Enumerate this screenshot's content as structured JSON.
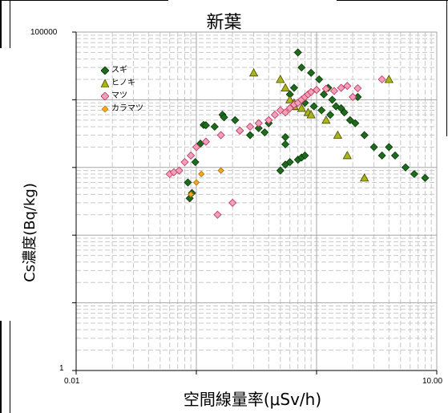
{
  "chart_data": {
    "type": "scatter",
    "title": "新葉",
    "xlabel": "空間線量率(μSv/h)",
    "ylabel": "Cs濃度(Bq/kg)",
    "xscale": "log",
    "yscale": "log",
    "xlim": [
      0.01,
      10
    ],
    "ylim": [
      1,
      100000
    ],
    "x_ticks": [
      "0.01",
      "10.00"
    ],
    "y_ticks": [
      "1",
      "100000"
    ],
    "grid": true,
    "legend_position": "top-left",
    "series": [
      {
        "name": "スギ",
        "marker": "diamond",
        "color": "#1e6b1e",
        "points": [
          [
            0.085,
            600
          ],
          [
            0.088,
            350
          ],
          [
            0.092,
            420
          ],
          [
            0.098,
            1200
          ],
          [
            0.108,
            2250
          ],
          [
            0.115,
            4250
          ],
          [
            0.12,
            4200
          ],
          [
            0.142,
            4000
          ],
          [
            0.165,
            6000
          ],
          [
            0.17,
            5500
          ],
          [
            0.21,
            5000
          ],
          [
            0.23,
            3500
          ],
          [
            0.28,
            3000
          ],
          [
            0.33,
            3800
          ],
          [
            0.37,
            3300
          ],
          [
            0.55,
            2200
          ],
          [
            0.7,
            50000
          ],
          [
            0.75,
            30000
          ],
          [
            0.9,
            25000
          ],
          [
            1.05,
            20000
          ],
          [
            1.15,
            12000
          ],
          [
            1.25,
            15000
          ],
          [
            1.35,
            10000
          ],
          [
            1.45,
            8000
          ],
          [
            1.6,
            7500
          ],
          [
            1.9,
            5000
          ],
          [
            2.1,
            4500
          ],
          [
            2.5,
            3000
          ],
          [
            3.0,
            2000
          ],
          [
            3.5,
            1500
          ],
          [
            4.0,
            2000
          ],
          [
            4.5,
            1500
          ],
          [
            5.5,
            1000
          ],
          [
            6.5,
            800
          ],
          [
            8.0,
            700
          ],
          [
            0.6,
            12000
          ],
          [
            0.65,
            15000
          ],
          [
            0.8,
            9000
          ],
          [
            0.95,
            8000
          ],
          [
            1.1,
            7000
          ],
          [
            1.3,
            6000
          ],
          [
            1.7,
            6500
          ],
          [
            2.2,
            11000
          ],
          [
            0.5,
            900
          ],
          [
            0.55,
            1100
          ],
          [
            0.6,
            1200
          ],
          [
            0.7,
            1300
          ],
          [
            0.75,
            1400
          ],
          [
            0.8,
            1500
          ],
          [
            0.55,
            2800
          ],
          [
            0.4,
            4500
          ]
        ]
      },
      {
        "name": "ヒノキ",
        "marker": "triangle",
        "color": "#a8b41a",
        "points": [
          [
            0.3,
            25000
          ],
          [
            0.5,
            20000
          ],
          [
            0.55,
            15000
          ],
          [
            0.6,
            10000
          ],
          [
            0.65,
            8000
          ],
          [
            0.75,
            7500
          ],
          [
            0.85,
            6500
          ],
          [
            0.9,
            6000
          ],
          [
            1.2,
            5000
          ],
          [
            1.5,
            3000
          ],
          [
            1.8,
            1500
          ],
          [
            2.5,
            700
          ],
          [
            4.0,
            20000
          ],
          [
            0.65,
            9000
          ]
        ]
      },
      {
        "name": "マツ",
        "marker": "diamond",
        "color": "#f0a0b8",
        "points": [
          [
            0.06,
            800
          ],
          [
            0.065,
            850
          ],
          [
            0.072,
            900
          ],
          [
            0.08,
            1200
          ],
          [
            0.09,
            1500
          ],
          [
            0.1,
            2000
          ],
          [
            0.12,
            2400
          ],
          [
            0.16,
            3000
          ],
          [
            0.23,
            3500
          ],
          [
            0.28,
            4000
          ],
          [
            0.33,
            4500
          ],
          [
            0.4,
            5000
          ],
          [
            0.45,
            6000
          ],
          [
            0.5,
            7000
          ],
          [
            0.55,
            6500
          ],
          [
            0.6,
            7500
          ],
          [
            0.65,
            8500
          ],
          [
            0.7,
            9000
          ],
          [
            0.75,
            10000
          ],
          [
            0.8,
            11000
          ],
          [
            0.85,
            12000
          ],
          [
            0.9,
            13000
          ],
          [
            1.0,
            14000
          ],
          [
            1.2,
            14500
          ],
          [
            1.4,
            13500
          ],
          [
            1.6,
            15000
          ],
          [
            1.8,
            16000
          ],
          [
            2.0,
            11000
          ],
          [
            2.2,
            14800
          ],
          [
            3.5,
            20000
          ],
          [
            0.15,
            200
          ],
          [
            0.2,
            300
          ]
        ]
      },
      {
        "name": "カラマツ",
        "marker": "diamond",
        "color": "#f5a623",
        "points": [
          [
            0.09,
            400
          ],
          [
            0.1,
            600
          ],
          [
            0.11,
            800
          ],
          [
            0.16,
            900
          ]
        ]
      }
    ]
  }
}
